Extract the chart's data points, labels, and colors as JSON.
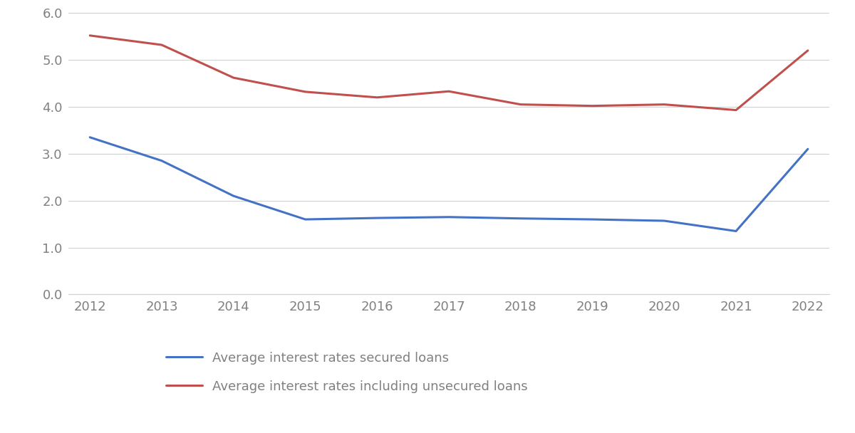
{
  "years": [
    2012,
    2013,
    2014,
    2015,
    2016,
    2017,
    2018,
    2019,
    2020,
    2021,
    2022
  ],
  "secured": [
    3.35,
    2.85,
    2.1,
    1.6,
    1.63,
    1.65,
    1.62,
    1.6,
    1.57,
    1.35,
    3.1
  ],
  "unsecured": [
    5.52,
    5.32,
    4.62,
    4.32,
    4.2,
    4.33,
    4.05,
    4.02,
    4.05,
    3.93,
    5.2
  ],
  "secured_color": "#4472C4",
  "unsecured_color": "#C0504D",
  "secured_label": "Average interest rates secured loans",
  "unsecured_label": "Average interest rates including unsecured loans",
  "ylim": [
    0.0,
    6.0
  ],
  "yticks": [
    0.0,
    1.0,
    2.0,
    3.0,
    4.0,
    5.0,
    6.0
  ],
  "line_width": 2.2,
  "background_color": "#ffffff",
  "grid_color": "#d0d0d0",
  "tick_color": "#808080",
  "figsize": [
    12.0,
    6.08
  ],
  "legend_fontsize": 13,
  "tick_fontsize": 13
}
